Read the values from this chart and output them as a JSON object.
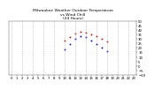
{
  "title": "Milwaukee Weather Outdoor Temperature\nvs Wind Chill\n(24 Hours)",
  "title_fontsize": 3.2,
  "background_color": "#ffffff",
  "grid_color": "#aaaaaa",
  "xlabel_fontsize": 2.8,
  "ylabel_fontsize": 2.8,
  "hours": [
    0,
    1,
    2,
    3,
    4,
    5,
    6,
    7,
    8,
    9,
    10,
    11,
    12,
    13,
    14,
    15,
    16,
    17,
    18,
    19,
    20,
    21,
    22,
    23
  ],
  "temp": [
    null,
    null,
    null,
    null,
    null,
    null,
    null,
    null,
    null,
    null,
    28,
    32,
    36,
    38,
    37,
    35,
    33,
    30,
    27,
    null,
    null,
    null,
    null,
    null
  ],
  "wind_chill": [
    null,
    null,
    null,
    null,
    null,
    null,
    null,
    null,
    null,
    null,
    18,
    24,
    30,
    33,
    32,
    28,
    24,
    20,
    16,
    null,
    null,
    null,
    null,
    null
  ],
  "temp_color": "#cc0000",
  "wind_chill_color": "#0000cc",
  "ylim": [
    -10,
    50
  ],
  "ytick_step": 5,
  "marker_size": 1.2,
  "dot_marker": "s"
}
